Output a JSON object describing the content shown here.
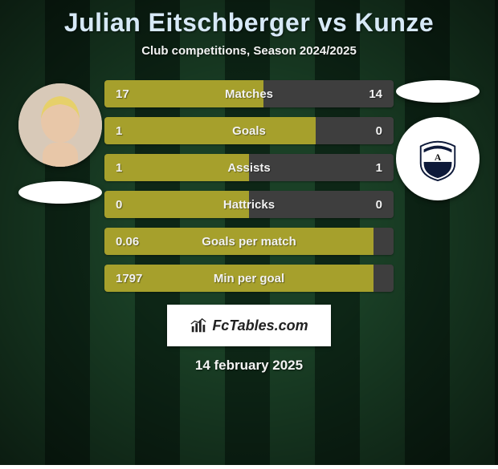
{
  "background": {
    "base_color": "#0f2a18",
    "stripe_color_light": "#1a4026",
    "stripe_color_dark": "#0d2616",
    "stripe_width": 56,
    "vignette": "radial-gradient(ellipse at center, rgba(0,0,0,0) 35%, rgba(0,0,0,0.55) 100%)"
  },
  "text_color": "#f3f3f3",
  "title": "Julian Eitschberger vs Kunze",
  "title_color": "#d7e9f7",
  "subtitle": "Club competitions, Season 2024/2025",
  "player_left": {
    "avatar_bg": "#d8c9b8",
    "skin": "#e8c7a8",
    "hair": "#e6d06a"
  },
  "player_right": {
    "crest_bg": "#ffffff",
    "crest_flag": "#0e1a3a",
    "crest_letter": "A"
  },
  "stats": [
    {
      "label": "Matches",
      "left_val": "17",
      "right_val": "14",
      "left_pct": 55,
      "right_pct": 45
    },
    {
      "label": "Goals",
      "left_val": "1",
      "right_val": "0",
      "left_pct": 73,
      "right_pct": 27
    },
    {
      "label": "Assists",
      "left_val": "1",
      "right_val": "1",
      "left_pct": 50,
      "right_pct": 50
    },
    {
      "label": "Hattricks",
      "left_val": "0",
      "right_val": "0",
      "left_pct": 50,
      "right_pct": 50
    },
    {
      "label": "Goals per match",
      "left_val": "0.06",
      "right_val": "",
      "left_pct": 93,
      "right_pct": 7
    },
    {
      "label": "Min per goal",
      "left_val": "1797",
      "right_val": "",
      "left_pct": 93,
      "right_pct": 7
    }
  ],
  "bar_style": {
    "height": 34,
    "left_color": "#a6a02c",
    "right_color": "#3e3e3e",
    "track_color": "#2c2c2c",
    "label_color": "#f2f2f2",
    "value_color": "#f2f2f2",
    "label_fontsize": 15,
    "border_radius": 4
  },
  "brand": "FcTables.com",
  "date": "14 february 2025"
}
